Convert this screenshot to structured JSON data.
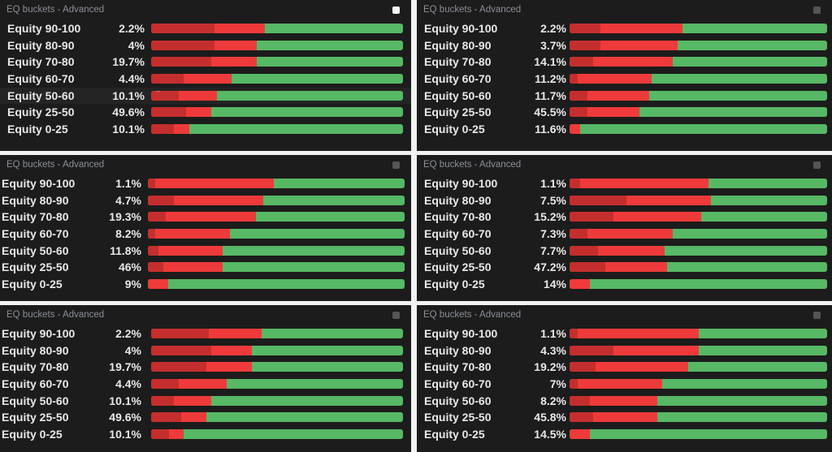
{
  "panels": [
    {
      "title": "EQ buckets - Advanced",
      "rows": [
        {
          "label": "Equity 90-100",
          "pct": "2.2%",
          "dark": 0.25,
          "red": 0.45
        },
        {
          "label": "Equity 80-90",
          "pct": "4%",
          "dark": 0.25,
          "red": 0.42
        },
        {
          "label": "Equity 70-80",
          "pct": "19.7%",
          "dark": 0.24,
          "red": 0.42
        },
        {
          "label": "Equity 60-70",
          "pct": "4.4%",
          "dark": 0.13,
          "red": 0.32
        },
        {
          "label": "Equity 50-60",
          "pct": "10.1%",
          "dark": 0.11,
          "red": 0.26,
          "hover": true
        },
        {
          "label": "Equity 25-50",
          "pct": "49.6%",
          "dark": 0.14,
          "red": 0.24
        },
        {
          "label": "Equity 0-25",
          "pct": "10.1%",
          "dark": 0.09,
          "red": 0.15
        }
      ]
    },
    {
      "title": "EQ buckets - Advanced",
      "rows": [
        {
          "label": "Equity 90-100",
          "pct": "2.2%",
          "dark": 0.12,
          "red": 0.44
        },
        {
          "label": "Equity 80-90",
          "pct": "3.7%",
          "dark": 0.12,
          "red": 0.42
        },
        {
          "label": "Equity 70-80",
          "pct": "14.1%",
          "dark": 0.09,
          "red": 0.4
        },
        {
          "label": "Equity 60-70",
          "pct": "11.2%",
          "dark": 0.03,
          "red": 0.32
        },
        {
          "label": "Equity 50-60",
          "pct": "11.7%",
          "dark": 0.07,
          "red": 0.31
        },
        {
          "label": "Equity 25-50",
          "pct": "45.5%",
          "dark": 0.07,
          "red": 0.27
        },
        {
          "label": "Equity 0-25",
          "pct": "11.6%",
          "dark": 0,
          "red": 0.04
        }
      ]
    },
    {
      "title": "EQ buckets - Advanced",
      "rows": [
        {
          "label": "Equity 90-100",
          "pct": "1.1%",
          "dark": 0.03,
          "red": 0.49
        },
        {
          "label": "Equity 80-90",
          "pct": "4.7%",
          "dark": 0.1,
          "red": 0.45
        },
        {
          "label": "Equity 70-80",
          "pct": "19.3%",
          "dark": 0.07,
          "red": 0.42
        },
        {
          "label": "Equity 60-70",
          "pct": "8.2%",
          "dark": 0.03,
          "red": 0.32
        },
        {
          "label": "Equity 50-60",
          "pct": "11.8%",
          "dark": 0.04,
          "red": 0.29
        },
        {
          "label": "Equity 25-50",
          "pct": "46%",
          "dark": 0.06,
          "red": 0.29
        },
        {
          "label": "Equity 0-25",
          "pct": "9%",
          "dark": 0,
          "red": 0.08
        }
      ]
    },
    {
      "title": "EQ buckets - Advanced",
      "rows": [
        {
          "label": "Equity 90-100",
          "pct": "1.1%",
          "dark": 0.04,
          "red": 0.54
        },
        {
          "label": "Equity 80-90",
          "pct": "7.5%",
          "dark": 0.22,
          "red": 0.55
        },
        {
          "label": "Equity 70-80",
          "pct": "15.2%",
          "dark": 0.17,
          "red": 0.51
        },
        {
          "label": "Equity 60-70",
          "pct": "7.3%",
          "dark": 0.07,
          "red": 0.4
        },
        {
          "label": "Equity 50-60",
          "pct": "7.7%",
          "dark": 0.11,
          "red": 0.37
        },
        {
          "label": "Equity 25-50",
          "pct": "47.2%",
          "dark": 0.14,
          "red": 0.38
        },
        {
          "label": "Equity 0-25",
          "pct": "14%",
          "dark": 0,
          "red": 0.08
        }
      ]
    },
    {
      "title": "EQ buckets - Advanced",
      "rows": [
        {
          "label": "Equity 90-100",
          "pct": "2.2%",
          "dark": 0.23,
          "red": 0.44
        },
        {
          "label": "Equity 80-90",
          "pct": "4%",
          "dark": 0.24,
          "red": 0.4
        },
        {
          "label": "Equity 70-80",
          "pct": "19.7%",
          "dark": 0.22,
          "red": 0.4
        },
        {
          "label": "Equity 60-70",
          "pct": "4.4%",
          "dark": 0.11,
          "red": 0.3
        },
        {
          "label": "Equity 50-60",
          "pct": "10.1%",
          "dark": 0.09,
          "red": 0.24
        },
        {
          "label": "Equity 25-50",
          "pct": "49.6%",
          "dark": 0.12,
          "red": 0.22
        },
        {
          "label": "Equity 0-25",
          "pct": "10.1%",
          "dark": 0.07,
          "red": 0.13
        }
      ]
    },
    {
      "title": "EQ buckets - Advanced",
      "rows": [
        {
          "label": "Equity 90-100",
          "pct": "1.1%",
          "dark": 0.03,
          "red": 0.5
        },
        {
          "label": "Equity 80-90",
          "pct": "4.3%",
          "dark": 0.17,
          "red": 0.5
        },
        {
          "label": "Equity 70-80",
          "pct": "19.2%",
          "dark": 0.1,
          "red": 0.46
        },
        {
          "label": "Equity 60-70",
          "pct": "7%",
          "dark": 0.03,
          "red": 0.36
        },
        {
          "label": "Equity 50-60",
          "pct": "8.2%",
          "dark": 0.08,
          "red": 0.34
        },
        {
          "label": "Equity 25-50",
          "pct": "45.8%",
          "dark": 0.09,
          "red": 0.34
        },
        {
          "label": "Equity 0-25",
          "pct": "14.5%",
          "dark": 0,
          "red": 0.08
        }
      ]
    }
  ],
  "colors": {
    "dark_red": "#c52e2e",
    "red": "#ee3a3a",
    "green": "#57b865",
    "bg": "#1c1c1c"
  }
}
